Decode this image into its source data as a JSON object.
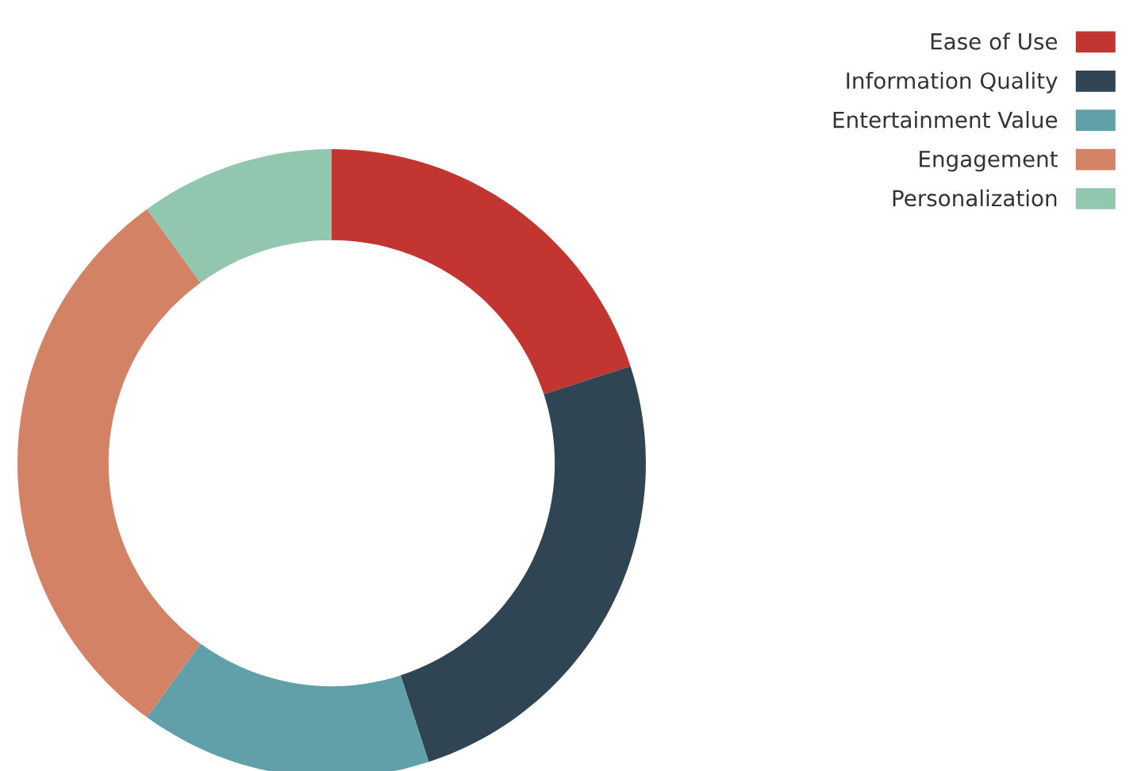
{
  "chart_data": {
    "type": "donut",
    "categories": [
      "Ease of Use",
      "Information Quality",
      "Entertainment Value",
      "Engagement",
      "Personalization"
    ],
    "values": [
      20,
      25,
      15,
      30,
      10
    ],
    "colors": [
      "#c23531",
      "#2f4554",
      "#61a0a8",
      "#d48265",
      "#91c7ae"
    ],
    "legend": "top right"
  }
}
